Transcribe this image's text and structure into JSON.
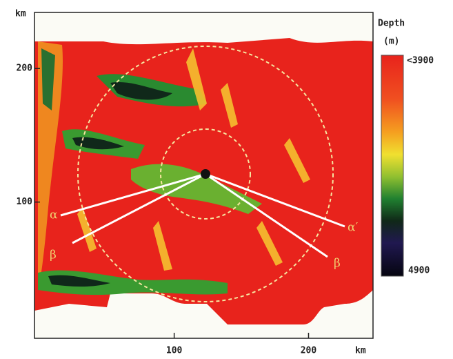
{
  "chart_data": {
    "type": "map",
    "xlabel": "km",
    "ylabel": "km",
    "xlim": [
      -4,
      248
    ],
    "xticks": [
      100,
      200
    ],
    "ylim": [
      -2,
      242
    ],
    "yticks": [
      100,
      200
    ],
    "colorbar": {
      "title": "Depth",
      "unit": "(m)",
      "top_label": "<3900",
      "bottom_label": "4900"
    },
    "annotations": [
      "α",
      "β",
      "α′",
      "β"
    ]
  }
}
